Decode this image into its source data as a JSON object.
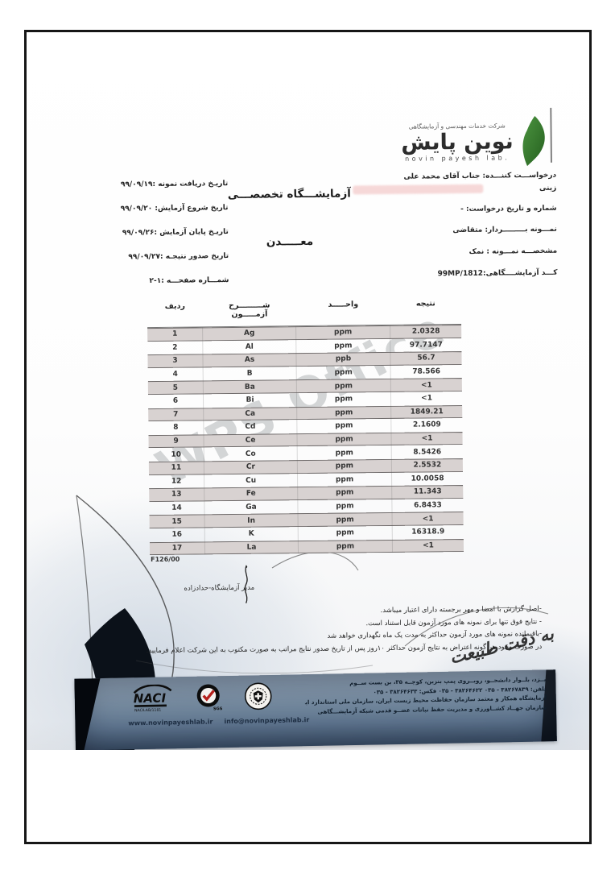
{
  "letterhead": {
    "tagline": "شرکت خدمات مهندسی و آزمایشگاهی",
    "logo_fa": "نوین پایش",
    "logo_en": "novin payesh lab."
  },
  "request_info": {
    "lines": [
      "درخواســـت کننـــده: جناب آقای محمد علی",
      "زینی",
      "شماره و تاریخ درخواست: -",
      "نمـــونه بـــــــــردار: متقاضی",
      "مشخصـــه نمـــونه : نمک",
      "کـــد آزمایشــــگاهی:99MP/1812"
    ]
  },
  "dates": {
    "lines": [
      "تاریـخ دریافت نمونه :۹۹/۰۹/۱۹",
      "تاریخ شروع آزمایش: ۹۹/۰۹/۲۰",
      "تاریـخ پایان آزمایش :۹۹/۰۹/۲۶",
      "تاریخ صدور نتیجـه :۹۹/۰۹/۲۷",
      "شمـــاره صفحـــه :۱-۲"
    ]
  },
  "headings": {
    "lab_type": "آزمایشـــگاه تخصصـــی",
    "department": "معـــــدن"
  },
  "table": {
    "columns": [
      "no",
      "test",
      "unit",
      "result"
    ],
    "headers": {
      "no": "ردیف",
      "test_line1": "شـــــــــرح",
      "test_line2": "آزمـــــون",
      "unit": "واحـــــد",
      "result": "نتیجه"
    },
    "rows": [
      {
        "no": "1",
        "test": "Ag",
        "unit": "ppm",
        "result": "2.0328"
      },
      {
        "no": "2",
        "test": "Al",
        "unit": "ppm",
        "result": "97.7147"
      },
      {
        "no": "3",
        "test": "As",
        "unit": "ppb",
        "result": "56.7"
      },
      {
        "no": "4",
        "test": "B",
        "unit": "ppm",
        "result": "78.566"
      },
      {
        "no": "5",
        "test": "Ba",
        "unit": "ppm",
        "result": "<1"
      },
      {
        "no": "6",
        "test": "Bi",
        "unit": "ppm",
        "result": "<1"
      },
      {
        "no": "7",
        "test": "Ca",
        "unit": "ppm",
        "result": "1849.21"
      },
      {
        "no": "8",
        "test": "Cd",
        "unit": "ppm",
        "result": "2.1609"
      },
      {
        "no": "9",
        "test": "Ce",
        "unit": "ppm",
        "result": "<1"
      },
      {
        "no": "10",
        "test": "Co",
        "unit": "ppm",
        "result": "8.5426"
      },
      {
        "no": "11",
        "test": "Cr",
        "unit": "ppm",
        "result": "2.5532"
      },
      {
        "no": "12",
        "test": "Cu",
        "unit": "ppm",
        "result": "10.0058"
      },
      {
        "no": "13",
        "test": "Fe",
        "unit": "ppm",
        "result": "11.343"
      },
      {
        "no": "14",
        "test": "Ga",
        "unit": "ppm",
        "result": "6.8433"
      },
      {
        "no": "15",
        "test": "In",
        "unit": "ppm",
        "result": "<1"
      },
      {
        "no": "16",
        "test": "K",
        "unit": "ppm",
        "result": "16318.9"
      },
      {
        "no": "17",
        "test": "La",
        "unit": "ppm",
        "result": "<1"
      }
    ]
  },
  "form_no": "F126/00",
  "signature": {
    "label": "مدیر آزمایشگاه-حدادزاده"
  },
  "notes": {
    "lines": [
      "-اصل گزارش با امضا و مهر برجسته دارای اعتبار میباشد.",
      "- نتایج فوق تنها برای نمونه های مورد آزمون قابل استناد است.",
      "-باقیمانده نمونه های مورد آزمون حداکثر به مدت یک ماه نگهداری خواهد شد",
      "در صورت وجود هر گونه اعتراض به نتایج آزمون حداکثر ۱۰روز پس از تاریخ صدور نتایج مراتب به صورت مکتوب به این شرکت اعلام فرمایید."
    ]
  },
  "slogan": "به دقت طبیعت",
  "watermark": "WPS Office",
  "footer": {
    "address_lines": [
      "یــزد، بلــوار دانشجــو، روبــروی پمپ بنزین، کوچــه ۳۵، بن بست ســوم",
      "تلفن: ۳۸۲۶۷۸۳۹ - ۰۳۵   ۳۸۲۶۴۶۲۲ - ۰۳۵    فکس: ۳۸۲۶۴۶۳۳ - ۰۳۵",
      "آزمایشگاه همکار و معتمد سازمان حفاظت محیط زیست ایران، سازمان ملی استاندارد ایران",
      "سازمان جهــاد کشــاورزی و مدیریت حفظ نباتات عضــو قدمی شبکه آزمایشـــگاهی"
    ],
    "certs": {
      "naci": "NACI",
      "naci_sub": "NACILAB/1181",
      "sgs": "SGS",
      "swiss": "SWISS CERTIFICATION"
    },
    "website": "www.novinpayeshlab.ir",
    "email": "info@novinpayeshlab.ir"
  },
  "colors": {
    "leaf_green": "#3e7f33",
    "footer_blue": "#5f7690",
    "shaded_row": "#d8d2d1"
  }
}
